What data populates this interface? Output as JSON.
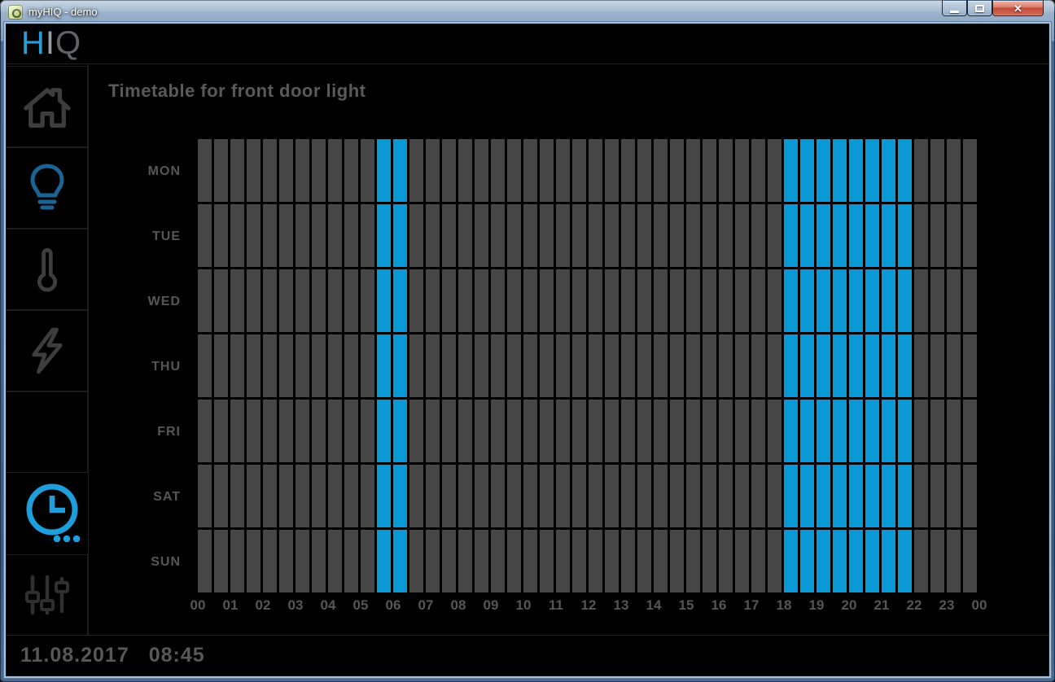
{
  "titlebar": {
    "title": "myHIQ - demo",
    "controls": [
      "minimize",
      "maximize",
      "close"
    ]
  },
  "logo": {
    "h": "H",
    "i": "I",
    "q": "Q"
  },
  "sidebar": {
    "items": [
      {
        "id": "home",
        "icon": "home-icon",
        "active": false
      },
      {
        "id": "lights",
        "icon": "lightbulb-icon",
        "active": true
      },
      {
        "id": "temperature",
        "icon": "thermometer-icon",
        "active": false
      },
      {
        "id": "energy",
        "icon": "lightning-icon",
        "active": false
      },
      {
        "id": "empty-slot",
        "icon": null,
        "active": false
      },
      {
        "id": "schedules",
        "icon": "clock-icon",
        "active": true,
        "badge": "ellipsis-dots"
      },
      {
        "id": "settings",
        "icon": "equalizer-icon",
        "active": false
      }
    ]
  },
  "main": {
    "title": "Timetable for front door light",
    "timetable": {
      "type": "heatmap",
      "days": [
        "MON",
        "TUE",
        "WED",
        "THU",
        "FRI",
        "SAT",
        "SUN"
      ],
      "hour_labels": [
        "00",
        "01",
        "02",
        "03",
        "04",
        "05",
        "06",
        "07",
        "08",
        "09",
        "10",
        "11",
        "12",
        "13",
        "14",
        "15",
        "16",
        "17",
        "18",
        "19",
        "20",
        "21",
        "22",
        "23",
        "00"
      ],
      "slots_per_day": 48,
      "slot_minutes": 30,
      "on_color": "#0a98d5",
      "off_color": "#474747",
      "on_times": [
        {
          "from": "05:30",
          "to": "06:30"
        },
        {
          "from": "18:00",
          "to": "22:00"
        }
      ],
      "rows": [
        {
          "day": "MON",
          "on_slots": [
            [
              11,
              13
            ],
            [
              36,
              44
            ]
          ]
        },
        {
          "day": "TUE",
          "on_slots": [
            [
              11,
              13
            ],
            [
              36,
              44
            ]
          ]
        },
        {
          "day": "WED",
          "on_slots": [
            [
              11,
              13
            ],
            [
              36,
              44
            ]
          ]
        },
        {
          "day": "THU",
          "on_slots": [
            [
              11,
              13
            ],
            [
              36,
              44
            ]
          ]
        },
        {
          "day": "FRI",
          "on_slots": [
            [
              11,
              13
            ],
            [
              36,
              44
            ]
          ]
        },
        {
          "day": "SAT",
          "on_slots": [
            [
              11,
              13
            ],
            [
              36,
              44
            ]
          ]
        },
        {
          "day": "SUN",
          "on_slots": [
            [
              11,
              13
            ],
            [
              36,
              44
            ]
          ]
        }
      ]
    }
  },
  "statusbar": {
    "date": "11.08.2017",
    "time": "08:45"
  },
  "colors": {
    "accent_blue": "#0a98d5",
    "clock_icon_blue": "#1e9fdc",
    "lightbulb_blue": "#1c6493",
    "cell_gray": "#474747",
    "text_gray": "#565656"
  }
}
